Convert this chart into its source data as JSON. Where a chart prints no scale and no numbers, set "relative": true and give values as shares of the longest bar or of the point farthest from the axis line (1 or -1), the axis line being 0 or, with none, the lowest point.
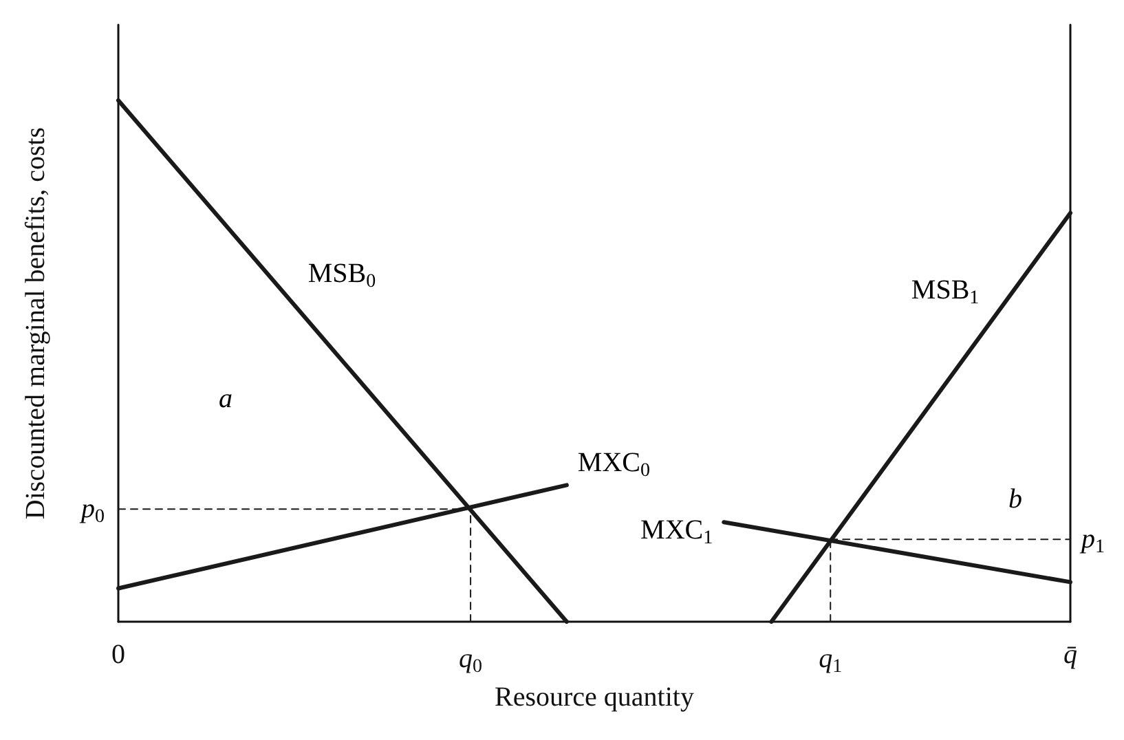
{
  "chart_data": {
    "type": "line",
    "relative": true,
    "xlabel": "Resource quantity",
    "ylabel": "Discounted marginal benefits, costs",
    "xlim": [
      0,
      1
    ],
    "xticks": [
      {
        "value": 0,
        "label": "0"
      },
      {
        "value": 0.37,
        "label": "q$_{0}$"
      },
      {
        "value": 0.748,
        "label": "q$_{1}$"
      },
      {
        "value": 1,
        "label": "q̄"
      }
    ],
    "series": [
      {
        "name": "MSB$_{0}$",
        "color": "#1a1a1a",
        "x": [
          0,
          0.471
        ],
        "values": [
          1,
          0
        ]
      },
      {
        "name": "MXC$_{0}$",
        "color": "#1a1a1a",
        "x": [
          0,
          0.471
        ],
        "values": [
          0.064,
          0.262
        ]
      },
      {
        "name": "MSB$_{1}$",
        "color": "#1a1a1a",
        "x": [
          0.686,
          1
        ],
        "values": [
          0,
          0.784
        ]
      },
      {
        "name": "MXC$_{1}$",
        "color": "#1a1a1a",
        "x": [
          0.636,
          1
        ],
        "values": [
          0.191,
          0.076
        ]
      },
      {
        "color": "#1a1a1a",
        "line_style": "dashed",
        "x": [
          0,
          0.37
        ],
        "values": [
          0.216,
          0.216
        ]
      },
      {
        "color": "#1a1a1a",
        "line_style": "dashed",
        "x": [
          0.37,
          0.37
        ],
        "values": [
          0,
          0.216
        ]
      },
      {
        "color": "#1a1a1a",
        "line_style": "dashed",
        "x": [
          0.748,
          0.748
        ],
        "values": [
          0,
          0.158
        ]
      },
      {
        "color": "#1a1a1a",
        "line_style": "dashed",
        "x": [
          0.748,
          1
        ],
        "values": [
          0.158,
          0.158
        ]
      }
    ],
    "annotations": [
      {
        "text": "p$_{0}$",
        "x": 0,
        "y": 0.216
      },
      {
        "text": "p$_{1}$",
        "x": 1,
        "y": 0.158
      },
      "a",
      "b"
    ]
  }
}
